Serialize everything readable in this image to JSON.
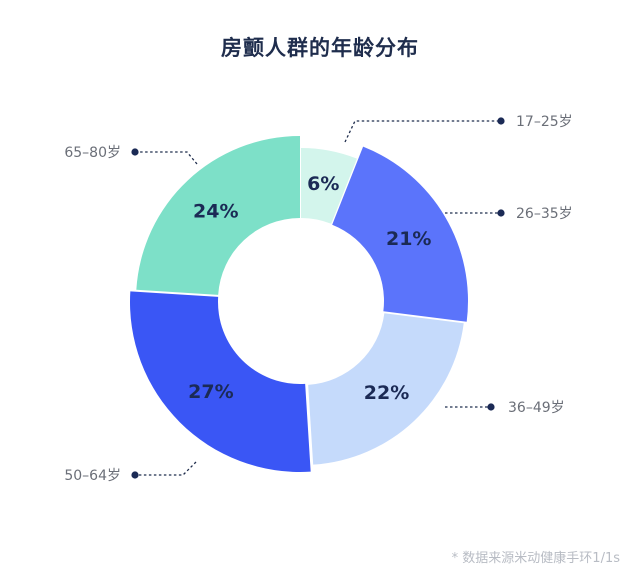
{
  "chart_data": {
    "type": "pie",
    "title": "房颤人群的年龄分布",
    "categories": [
      "17–25岁",
      "26–35岁",
      "36–49岁",
      "50–64岁",
      "65–80岁"
    ],
    "values": [
      6,
      21,
      22,
      27,
      24
    ],
    "value_labels": [
      "6%",
      "21%",
      "22%",
      "27%",
      "24%"
    ],
    "colors": [
      "#d3f5ec",
      "#5b74fb",
      "#c5dafb",
      "#3a56f5",
      "#7de0c8"
    ],
    "donut": true,
    "segments_offset": true,
    "legend": "callout-labels",
    "note": "* 数据来源米动健康手环1/1s"
  }
}
